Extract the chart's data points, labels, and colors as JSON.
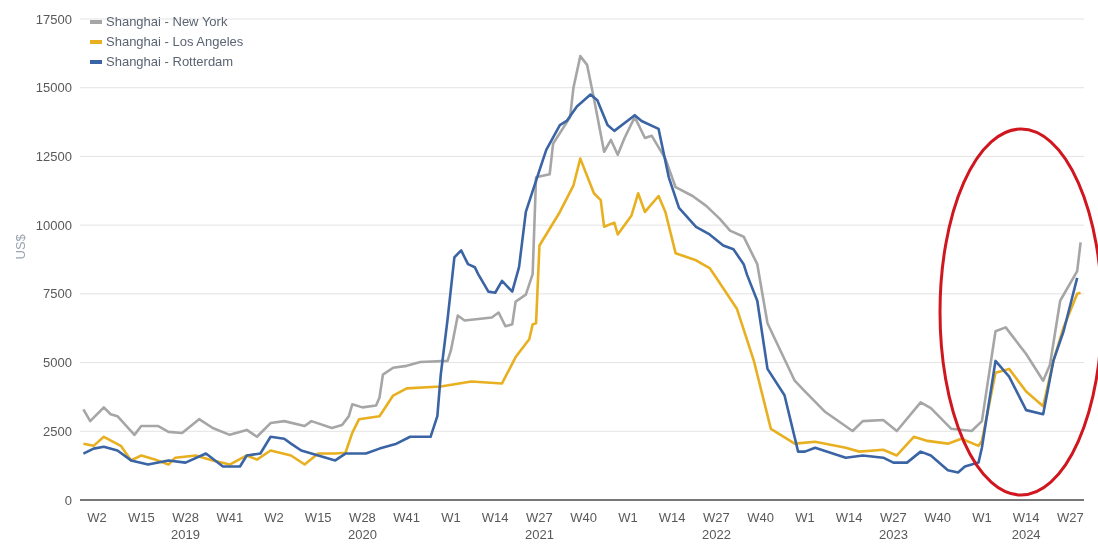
{
  "chart_data": {
    "type": "line",
    "ylabel": "US$",
    "legend": "top left",
    "grid": "y",
    "xlim": [
      "2018-12-03",
      "2024-07-29"
    ],
    "ylim": [
      0,
      17500
    ],
    "yticks": [
      0,
      2500,
      5000,
      7500,
      10000,
      12500,
      15000,
      17500
    ],
    "xticks": [
      {
        "value": "2019-01-07",
        "label": "W2"
      },
      {
        "value": "2019-04-08",
        "label": "W15"
      },
      {
        "value": "2019-07-08",
        "label": "W28\n2019"
      },
      {
        "value": "2019-10-07",
        "label": "W41"
      },
      {
        "value": "2020-01-06",
        "label": "W2"
      },
      {
        "value": "2020-04-06",
        "label": "W15"
      },
      {
        "value": "2020-07-06",
        "label": "W28\n2020"
      },
      {
        "value": "2020-10-05",
        "label": "W41"
      },
      {
        "value": "2021-01-04",
        "label": "W1"
      },
      {
        "value": "2021-04-05",
        "label": "W14"
      },
      {
        "value": "2021-07-05",
        "label": "W27\n2021"
      },
      {
        "value": "2021-10-04",
        "label": "W40"
      },
      {
        "value": "2022-01-03",
        "label": "W1"
      },
      {
        "value": "2022-04-04",
        "label": "W14"
      },
      {
        "value": "2022-07-04",
        "label": "W27\n2022"
      },
      {
        "value": "2022-10-03",
        "label": "W40"
      },
      {
        "value": "2023-01-02",
        "label": "W1"
      },
      {
        "value": "2023-04-03",
        "label": "W14"
      },
      {
        "value": "2023-07-03",
        "label": "W27\n2023"
      },
      {
        "value": "2023-10-02",
        "label": "W40"
      },
      {
        "value": "2024-01-01",
        "label": "W1"
      },
      {
        "value": "2024-04-01",
        "label": "W14\n2024"
      },
      {
        "value": "2024-07-01",
        "label": "W27"
      }
    ],
    "series": [
      {
        "name": "Shanghai - New York",
        "color": "#a6a6a6",
        "x": [
          "2018-12-10",
          "2018-12-24",
          "2019-01-21",
          "2019-02-04",
          "2019-02-18",
          "2019-03-25",
          "2019-04-08",
          "2019-05-13",
          "2019-06-03",
          "2019-07-01",
          "2019-08-05",
          "2019-09-02",
          "2019-10-07",
          "2019-11-11",
          "2019-12-02",
          "2019-12-30",
          "2020-01-27",
          "2020-03-09",
          "2020-03-23",
          "2020-05-04",
          "2020-05-25",
          "2020-06-08",
          "2020-06-15",
          "2020-07-06",
          "2020-08-03",
          "2020-08-10",
          "2020-08-17",
          "2020-09-07",
          "2020-10-05",
          "2020-11-02",
          "2020-12-28",
          "2021-01-04",
          "2021-01-18",
          "2021-02-01",
          "2021-03-29",
          "2021-04-12",
          "2021-04-26",
          "2021-05-10",
          "2021-05-17",
          "2021-06-07",
          "2021-06-21",
          "2021-06-28",
          "2021-07-26",
          "2021-08-02",
          "2021-09-06",
          "2021-09-13",
          "2021-09-27",
          "2021-10-11",
          "2021-10-25",
          "2021-11-15",
          "2021-11-29",
          "2021-12-13",
          "2021-12-27",
          "2022-01-17",
          "2022-02-07",
          "2022-02-21",
          "2022-03-21",
          "2022-04-11",
          "2022-05-16",
          "2022-06-13",
          "2022-07-11",
          "2022-08-01",
          "2022-08-29",
          "2022-09-26",
          "2022-10-17",
          "2022-12-12",
          "2023-01-02",
          "2023-02-13",
          "2023-04-10",
          "2023-05-01",
          "2023-06-12",
          "2023-07-10",
          "2023-08-28",
          "2023-09-18",
          "2023-10-30",
          "2023-12-11",
          "2024-01-01",
          "2024-01-29",
          "2024-02-19",
          "2024-04-01",
          "2024-05-06",
          "2024-05-20",
          "2024-06-10",
          "2024-07-15",
          "2024-07-22"
        ],
        "values": [
          3300,
          2870,
          3370,
          3120,
          3050,
          2370,
          2690,
          2690,
          2480,
          2440,
          2940,
          2620,
          2370,
          2550,
          2300,
          2800,
          2870,
          2690,
          2870,
          2620,
          2730,
          3050,
          3480,
          3370,
          3440,
          3730,
          4560,
          4810,
          4880,
          5020,
          5060,
          5450,
          6710,
          6530,
          6640,
          6820,
          6320,
          6390,
          7220,
          7470,
          8220,
          11740,
          11850,
          12960,
          13930,
          15010,
          16150,
          15830,
          14610,
          12670,
          13100,
          12560,
          13170,
          13930,
          13170,
          13250,
          12420,
          11380,
          11060,
          10700,
          10230,
          9800,
          9580,
          8580,
          6430,
          4340,
          3950,
          3200,
          2510,
          2870,
          2910,
          2510,
          3550,
          3340,
          2590,
          2510,
          2870,
          6140,
          6280,
          5310,
          4340,
          4920,
          7250,
          8330,
          9370
        ]
      },
      {
        "name": "Shanghai - Los Angeles",
        "color": "#e8b020",
        "x": [
          "2018-12-10",
          "2018-12-31",
          "2019-01-21",
          "2019-02-25",
          "2019-03-18",
          "2019-04-08",
          "2019-05-06",
          "2019-06-03",
          "2019-06-17",
          "2019-07-29",
          "2019-09-02",
          "2019-10-07",
          "2019-11-11",
          "2019-12-02",
          "2019-12-30",
          "2020-02-10",
          "2020-03-09",
          "2020-04-06",
          "2020-05-11",
          "2020-06-01",
          "2020-06-15",
          "2020-06-29",
          "2020-08-10",
          "2020-09-07",
          "2020-10-05",
          "2020-12-14",
          "2021-02-15",
          "2021-04-19",
          "2021-05-17",
          "2021-06-14",
          "2021-06-21",
          "2021-06-28",
          "2021-07-05",
          "2021-08-16",
          "2021-09-13",
          "2021-09-27",
          "2021-10-25",
          "2021-11-08",
          "2021-11-15",
          "2021-12-06",
          "2021-12-13",
          "2022-01-10",
          "2022-01-24",
          "2022-02-07",
          "2022-03-07",
          "2022-03-21",
          "2022-04-11",
          "2022-05-23",
          "2022-06-20",
          "2022-07-04",
          "2022-08-15",
          "2022-09-19",
          "2022-10-24",
          "2022-12-12",
          "2023-01-23",
          "2023-03-27",
          "2023-04-24",
          "2023-06-12",
          "2023-07-10",
          "2023-08-14",
          "2023-09-11",
          "2023-10-23",
          "2023-11-20",
          "2023-12-25",
          "2024-01-01",
          "2024-01-29",
          "2024-02-26",
          "2024-04-01",
          "2024-05-06",
          "2024-05-27",
          "2024-06-17",
          "2024-07-15",
          "2024-07-22"
        ],
        "values": [
          2050,
          1970,
          2300,
          1970,
          1440,
          1620,
          1470,
          1290,
          1540,
          1620,
          1440,
          1290,
          1620,
          1470,
          1800,
          1620,
          1290,
          1690,
          1690,
          1720,
          2440,
          2940,
          3050,
          3800,
          4060,
          4130,
          4310,
          4240,
          5200,
          5850,
          6390,
          6430,
          9260,
          10480,
          11450,
          12420,
          11160,
          10910,
          9940,
          10090,
          9660,
          10340,
          11160,
          10480,
          11060,
          10480,
          8980,
          8720,
          8440,
          8080,
          6960,
          5060,
          2590,
          2050,
          2120,
          1900,
          1760,
          1830,
          1620,
          2300,
          2150,
          2050,
          2230,
          1970,
          2150,
          4630,
          4770,
          3950,
          3410,
          5060,
          6280,
          7500,
          7540
        ]
      },
      {
        "name": "Shanghai - Rotterdam",
        "color": "#3a64a4",
        "x": [
          "2018-12-10",
          "2018-12-31",
          "2019-01-21",
          "2019-02-18",
          "2019-03-18",
          "2019-04-22",
          "2019-06-03",
          "2019-07-08",
          "2019-08-19",
          "2019-09-23",
          "2019-10-28",
          "2019-11-11",
          "2019-12-09",
          "2019-12-30",
          "2020-01-27",
          "2020-02-10",
          "2020-03-02",
          "2020-04-06",
          "2020-05-11",
          "2020-06-01",
          "2020-07-13",
          "2020-08-10",
          "2020-09-14",
          "2020-10-12",
          "2020-11-23",
          "2020-12-07",
          "2020-12-14",
          "2020-12-28",
          "2021-01-11",
          "2021-01-25",
          "2021-02-08",
          "2021-02-22",
          "2021-03-01",
          "2021-03-22",
          "2021-04-05",
          "2021-04-19",
          "2021-05-10",
          "2021-05-24",
          "2021-06-07",
          "2021-07-05",
          "2021-07-19",
          "2021-08-16",
          "2021-08-30",
          "2021-09-20",
          "2021-10-18",
          "2021-11-01",
          "2021-11-22",
          "2021-12-06",
          "2022-01-17",
          "2022-01-31",
          "2022-03-07",
          "2022-03-28",
          "2022-04-18",
          "2022-05-23",
          "2022-06-20",
          "2022-07-18",
          "2022-08-08",
          "2022-08-29",
          "2022-09-05",
          "2022-09-26",
          "2022-10-17",
          "2022-11-21",
          "2022-12-19",
          "2023-01-02",
          "2023-01-23",
          "2023-03-27",
          "2023-05-01",
          "2023-06-12",
          "2023-07-03",
          "2023-07-31",
          "2023-08-28",
          "2023-09-18",
          "2023-10-23",
          "2023-11-13",
          "2023-11-27",
          "2023-12-25",
          "2024-01-01",
          "2024-01-29",
          "2024-02-26",
          "2024-04-01",
          "2024-05-06",
          "2024-05-27",
          "2024-06-17",
          "2024-07-15"
        ],
        "values": [
          1690,
          1870,
          1940,
          1800,
          1440,
          1290,
          1440,
          1360,
          1690,
          1220,
          1220,
          1620,
          1690,
          2300,
          2230,
          2050,
          1800,
          1620,
          1440,
          1690,
          1690,
          1870,
          2050,
          2300,
          2300,
          3050,
          4560,
          6570,
          8830,
          9080,
          8580,
          8470,
          8220,
          7580,
          7540,
          7970,
          7580,
          8470,
          10480,
          11990,
          12740,
          13640,
          13790,
          14320,
          14750,
          14540,
          13640,
          13430,
          14000,
          13790,
          13500,
          11740,
          10630,
          9940,
          9660,
          9260,
          9120,
          8580,
          8190,
          7250,
          4770,
          3810,
          1760,
          1760,
          1900,
          1540,
          1620,
          1540,
          1360,
          1360,
          1760,
          1620,
          1080,
          1000,
          1220,
          1360,
          1900,
          5060,
          4490,
          3270,
          3120,
          5060,
          6140,
          8080
        ]
      }
    ]
  }
}
